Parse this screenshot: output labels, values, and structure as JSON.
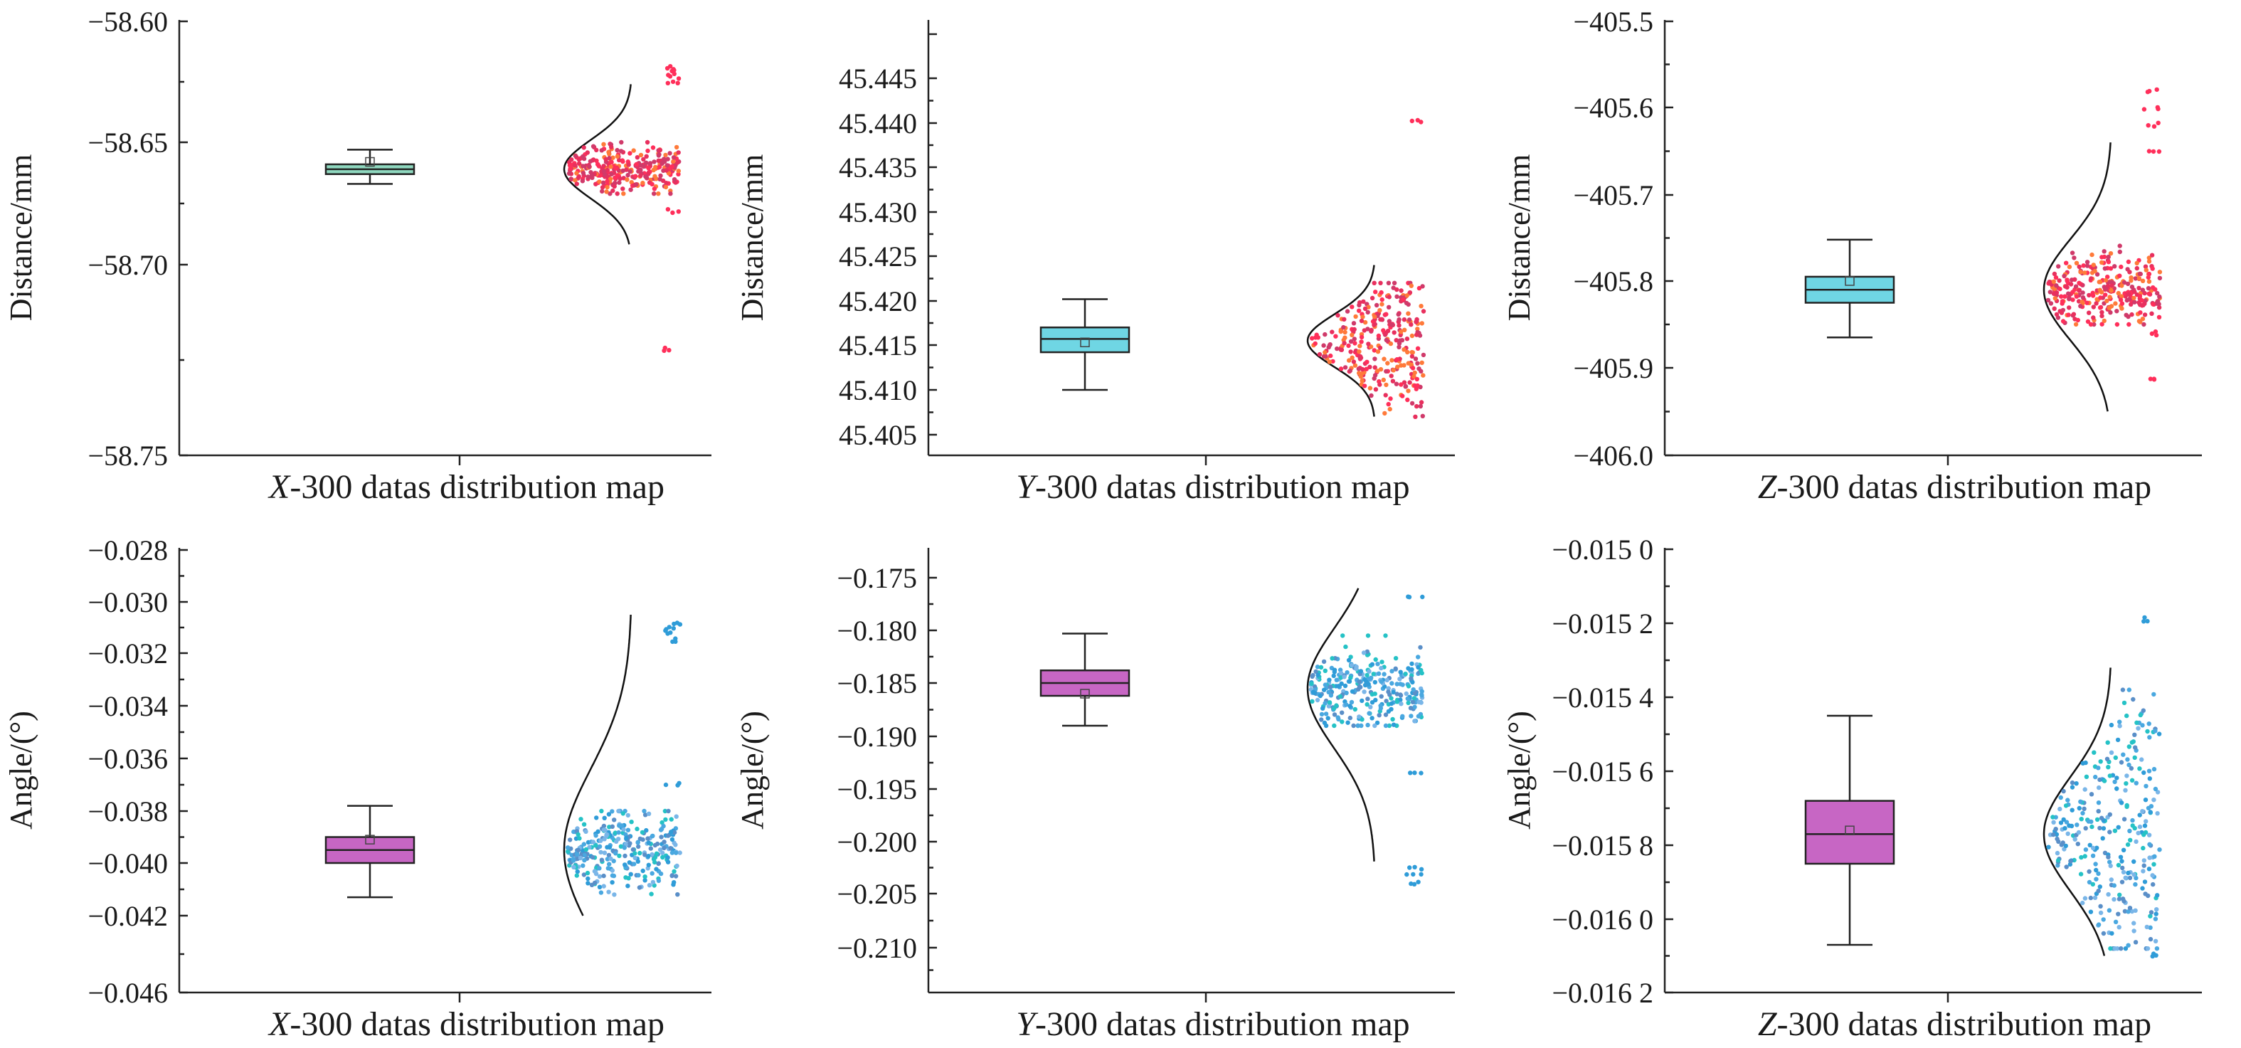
{
  "colors": {
    "x_distance_box": "#8fd8bf",
    "yz_distance_box": "#6fd6e4",
    "angle_box": "#c766c4",
    "distance_points": [
      "#ff2f5a",
      "#e8305e",
      "#ff7a3a",
      "#d03a6a"
    ],
    "angle_points": [
      "#2f9cd8",
      "#4aa8e0",
      "#25c2c6",
      "#5a8fc8",
      "#7ab6e8"
    ],
    "stray_point": "#7a8a8a"
  },
  "chart_data": [
    {
      "id": "x-distance",
      "type": "box-with-scatter-and-normal",
      "ylabel": "Distance/mm",
      "xlabel_var": "X",
      "xlabel_rest": "-300 datas distribution map",
      "ylim": [
        -58.75,
        -58.6
      ],
      "yticks": [
        "−58.60",
        "−58.65",
        "−58.70",
        "−58.75"
      ],
      "ytick_values": [
        -58.6,
        -58.65,
        -58.7,
        -58.75
      ],
      "box": {
        "min": -58.667,
        "q1": -58.663,
        "median": -58.661,
        "q3": -58.659,
        "max": -58.653,
        "mean": -58.658
      },
      "distribution": {
        "center": -58.661,
        "scatter_low": -58.671,
        "scatter_high": -58.65,
        "outliers": [
          -58.623,
          -58.621,
          -58.625,
          -58.619,
          -58.678,
          -58.722
        ],
        "curve_low": -58.692,
        "curve_high": -58.626
      }
    },
    {
      "id": "y-distance",
      "type": "box-with-scatter-and-normal",
      "ylabel": "Distance/mm",
      "xlabel_var": "Y",
      "xlabel_rest": "-300 datas distribution map",
      "ylim": [
        45.403,
        45.447
      ],
      "yticks": [
        "45.445",
        "45.440",
        "45.435",
        "45.430",
        "45.425",
        "45.420",
        "45.415",
        "45.410",
        "45.405"
      ],
      "ytick_values": [
        45.445,
        45.44,
        45.435,
        45.43,
        45.425,
        45.42,
        45.415,
        45.41,
        45.405
      ],
      "box": {
        "min": 45.41,
        "q1": 45.4142,
        "median": 45.4157,
        "q3": 45.417,
        "max": 45.4202,
        "mean": 45.4153
      },
      "distribution": {
        "center": 45.4155,
        "scatter_low": 45.407,
        "scatter_high": 45.422,
        "outliers": [
          45.4402
        ],
        "curve_low": 45.407,
        "curve_high": 45.424
      }
    },
    {
      "id": "z-distance",
      "type": "box-with-scatter-and-normal",
      "ylabel": "Distance/mm",
      "xlabel_var": "Z",
      "xlabel_rest": "-300 datas distribution map",
      "ylim": [
        -406.0,
        -405.5
      ],
      "yticks": [
        "−405.5",
        "−405.6",
        "−405.7",
        "−405.8",
        "−405.9",
        "−406.0"
      ],
      "ytick_values": [
        -405.5,
        -405.6,
        -405.7,
        -405.8,
        -405.9,
        -406.0
      ],
      "box": {
        "min": -405.865,
        "q1": -405.825,
        "median": -405.81,
        "q3": -405.795,
        "max": -405.752,
        "mean": -405.8
      },
      "distribution": {
        "center": -405.81,
        "scatter_low": -405.85,
        "scatter_high": -405.75,
        "outliers": [
          -405.58,
          -405.6,
          -405.62,
          -405.65,
          -405.86,
          -405.915
        ],
        "curve_low": -405.95,
        "curve_high": -405.64
      }
    },
    {
      "id": "x-angle",
      "type": "box-with-scatter-and-normal",
      "ylabel": "Angle/(°)",
      "xlabel_var": "X",
      "xlabel_rest": "-300 datas distribution map",
      "ylim": [
        -0.046,
        -0.028
      ],
      "yticks": [
        "−0.028",
        "−0.030",
        "−0.032",
        "−0.034",
        "−0.036",
        "−0.038",
        "−0.040",
        "−0.042",
        "−0.046"
      ],
      "ytick_values": [
        -0.028,
        -0.03,
        -0.032,
        -0.034,
        -0.036,
        -0.038,
        -0.04,
        -0.042,
        -0.046
      ],
      "box": {
        "min": -0.0413,
        "q1": -0.04,
        "median": -0.0395,
        "q3": -0.039,
        "max": -0.0378,
        "mean": -0.0391
      },
      "distribution": {
        "center": -0.0395,
        "scatter_low": -0.0412,
        "scatter_high": -0.038,
        "outliers": [
          -0.0308,
          -0.031,
          -0.0312,
          -0.0315,
          -0.037
        ],
        "curve_low": -0.042,
        "curve_high": -0.0305
      }
    },
    {
      "id": "y-angle",
      "type": "box-with-scatter-and-normal",
      "ylabel": "Angle/(°)",
      "xlabel_var": "Y",
      "xlabel_rest": "-300 datas distribution map",
      "ylim": [
        -0.21,
        -0.172
      ],
      "yticks": [
        "−0.175",
        "−0.180",
        "−0.185",
        "−0.190",
        "−0.195",
        "−0.200",
        "−0.205",
        "−0.210"
      ],
      "ytick_values": [
        -0.175,
        -0.18,
        -0.185,
        -0.19,
        -0.195,
        -0.2,
        -0.205,
        -0.21
      ],
      "box": {
        "min": -0.189,
        "q1": -0.1862,
        "median": -0.185,
        "q3": -0.1838,
        "max": -0.1803,
        "mean": -0.186
      },
      "distribution": {
        "center": -0.1855,
        "scatter_low": -0.189,
        "scatter_high": -0.1805,
        "outliers": [
          -0.2025,
          -0.203,
          -0.204,
          -0.1935,
          -0.177
        ],
        "curve_low": -0.202,
        "curve_high": -0.176
      }
    },
    {
      "id": "z-angle",
      "type": "box-with-scatter-and-normal",
      "ylabel": "Angle/(°)",
      "xlabel_var": "Z",
      "xlabel_rest": "-300 datas distribution map",
      "ylim": [
        -0.0162,
        -0.015
      ],
      "yticks": [
        "−0.015 0",
        "−0.015 2",
        "−0.015 4",
        "−0.015 6",
        "−0.015 8",
        "−0.016 0",
        "−0.016 2"
      ],
      "ytick_values": [
        -0.015,
        -0.0152,
        -0.0154,
        -0.0156,
        -0.0158,
        -0.016,
        -0.0162
      ],
      "box": {
        "min": -0.01607,
        "q1": -0.01585,
        "median": -0.01577,
        "q3": -0.01568,
        "max": -0.01545,
        "mean": -0.01576
      },
      "distribution": {
        "center": -0.01577,
        "scatter_low": -0.01608,
        "scatter_high": -0.01538,
        "outliers": [
          -0.01519,
          -0.0161
        ],
        "curve_low": -0.0161,
        "curve_high": -0.01532
      }
    }
  ]
}
